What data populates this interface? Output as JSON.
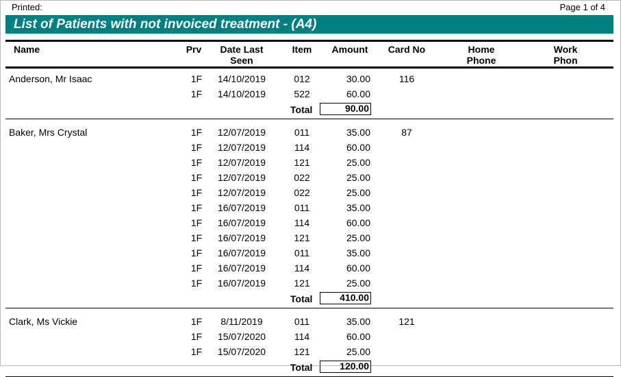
{
  "header": {
    "printed_label": "Printed:",
    "page_label": "Page 1 of 4",
    "title": "List of Patients with not invoiced treatment - (A4)"
  },
  "columns": {
    "name": "Name",
    "prv": "Prv",
    "date_line1": "Date Last",
    "date_line2": "Seen",
    "item": "Item",
    "amount": "Amount",
    "card": "Card No",
    "home_line1": "Home",
    "home_line2": "Phone",
    "work_line1": "Work",
    "work_line2": "Phon"
  },
  "total_label": "Total",
  "patients": [
    {
      "name": "Anderson, Mr Isaac",
      "card": "116",
      "total": "90.00",
      "rows": [
        {
          "prv": "1F",
          "date": "14/10/2019",
          "item": "012",
          "amount": "30.00"
        },
        {
          "prv": "1F",
          "date": "14/10/2019",
          "item": "522",
          "amount": "60.00"
        }
      ]
    },
    {
      "name": "Baker, Mrs Crystal",
      "card": "87",
      "total": "410.00",
      "rows": [
        {
          "prv": "1F",
          "date": "12/07/2019",
          "item": "011",
          "amount": "35.00"
        },
        {
          "prv": "1F",
          "date": "12/07/2019",
          "item": "114",
          "amount": "60.00"
        },
        {
          "prv": "1F",
          "date": "12/07/2019",
          "item": "121",
          "amount": "25.00"
        },
        {
          "prv": "1F",
          "date": "12/07/2019",
          "item": "022",
          "amount": "25.00"
        },
        {
          "prv": "1F",
          "date": "12/07/2019",
          "item": "022",
          "amount": "25.00"
        },
        {
          "prv": "1F",
          "date": "16/07/2019",
          "item": "011",
          "amount": "35.00"
        },
        {
          "prv": "1F",
          "date": "16/07/2019",
          "item": "114",
          "amount": "60.00"
        },
        {
          "prv": "1F",
          "date": "16/07/2019",
          "item": "121",
          "amount": "25.00"
        },
        {
          "prv": "1F",
          "date": "16/07/2019",
          "item": "011",
          "amount": "35.00"
        },
        {
          "prv": "1F",
          "date": "16/07/2019",
          "item": "114",
          "amount": "60.00"
        },
        {
          "prv": "1F",
          "date": "16/07/2019",
          "item": "121",
          "amount": "25.00"
        }
      ]
    },
    {
      "name": "Clark, Ms Vickie",
      "card": "121",
      "total": "120.00",
      "rows": [
        {
          "prv": "1F",
          "date": "8/11/2019",
          "item": "011",
          "amount": "35.00"
        },
        {
          "prv": "1F",
          "date": "15/07/2020",
          "item": "114",
          "amount": "60.00"
        },
        {
          "prv": "1F",
          "date": "15/07/2020",
          "item": "121",
          "amount": "25.00"
        }
      ]
    }
  ]
}
